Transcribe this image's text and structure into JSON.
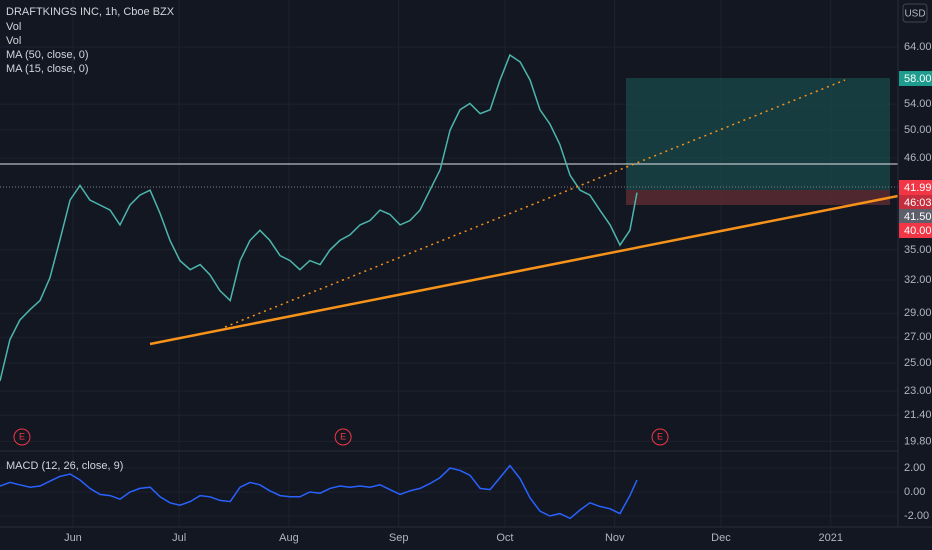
{
  "chart_data": [
    {
      "type": "line",
      "title": "DRAFTKINGS INC, 1h, Cboe BZX",
      "legend": [
        "Vol",
        "Vol",
        "MA (50, close, 0)",
        "MA (15, close, 0)"
      ],
      "currency": "USD",
      "color": "#4db6ac",
      "log_scale": true,
      "grid": true,
      "x": [
        -20.6,
        -17.8,
        -15.0,
        -12.1,
        -9.3,
        -6.5,
        -3.7,
        -0.8,
        2.0,
        4.8,
        7.6,
        10.5,
        13.3,
        16.1,
        18.9,
        21.8,
        24.6,
        27.4,
        30.2,
        33.1,
        35.9,
        38.7,
        41.5,
        44.4,
        47.2,
        50.0,
        52.8,
        55.6,
        58.5,
        61.3,
        64.1,
        66.9,
        69.8,
        72.6,
        75.4,
        78.2,
        81.1,
        83.9,
        86.7,
        89.5,
        92.4,
        95.2,
        98.0,
        100.8,
        103.7,
        106.5,
        109.3,
        112.1,
        115.0,
        117.8,
        120.6,
        123.4,
        126.3,
        129.1,
        131.9,
        134.7,
        137.5,
        140.4,
        143.2,
        146.0,
        148.8,
        151.7,
        154.5,
        157.3,
        159.3
      ],
      "values": [
        23.7,
        26.8,
        28.4,
        29.3,
        30.1,
        32.2,
        36.0,
        40.6,
        42.4,
        40.6,
        40.0,
        39.4,
        37.7,
        40.0,
        41.2,
        41.8,
        39.0,
        36.0,
        33.9,
        33.0,
        33.5,
        32.5,
        31.0,
        30.1,
        33.9,
        36.0,
        37.1,
        36.0,
        34.4,
        33.9,
        33.0,
        33.9,
        33.5,
        35.0,
        36.0,
        36.6,
        37.7,
        38.2,
        39.4,
        38.9,
        37.7,
        38.2,
        39.4,
        41.8,
        44.4,
        50.0,
        53.1,
        54.1,
        52.5,
        53.1,
        58.0,
        62.5,
        61.2,
        58.0,
        53.1,
        50.9,
        47.9,
        43.7,
        41.8,
        41.2,
        39.4,
        37.7,
        35.5,
        37.1,
        41.5
      ],
      "xlim": [
        -20.6,
        233
      ],
      "xticks": [
        {
          "value": 0,
          "label": "Jun"
        },
        {
          "value": 30,
          "label": "Jul"
        },
        {
          "value": 61,
          "label": "Aug"
        },
        {
          "value": 92,
          "label": "Sep"
        },
        {
          "value": 122,
          "label": "Oct"
        },
        {
          "value": 153,
          "label": "Nov"
        },
        {
          "value": 183,
          "label": "Dec"
        },
        {
          "value": 214,
          "label": "2021"
        }
      ],
      "ylim": [
        19.3,
        73.6
      ],
      "yticks": [
        {
          "value": 64,
          "label": "64.00"
        },
        {
          "value": 54,
          "label": "54.00"
        },
        {
          "value": 50,
          "label": "50.00"
        },
        {
          "value": 46,
          "label": "46.00"
        },
        {
          "value": 35,
          "label": "35.00"
        },
        {
          "value": 32,
          "label": "32.00"
        },
        {
          "value": 29,
          "label": "29.00"
        },
        {
          "value": 27,
          "label": "27.00"
        },
        {
          "value": 25,
          "label": "25.00"
        },
        {
          "value": 23,
          "label": "23.00"
        },
        {
          "value": 21.4,
          "label": "21.40"
        },
        {
          "value": 19.8,
          "label": "19.80"
        }
      ],
      "events": {
        "x": [
          -14.4,
          76.3,
          165.8
        ],
        "labels": [
          "E",
          "E",
          "E"
        ]
      },
      "price_labels": {
        "target": "58.00",
        "entry": "41.99",
        "countdown": "46:03",
        "last": "41.50",
        "stop": "40.00"
      }
    },
    {
      "type": "line",
      "title": "MACD (12, 26, close, 9)",
      "color": "#2962ff",
      "values": [
        0.5,
        0.8,
        0.6,
        0.4,
        0.5,
        0.9,
        1.3,
        1.5,
        1.0,
        0.3,
        -0.2,
        -0.3,
        -0.6,
        0.0,
        0.3,
        0.4,
        -0.4,
        -0.9,
        -1.1,
        -0.8,
        -0.3,
        -0.4,
        -0.7,
        -0.8,
        0.4,
        0.8,
        0.6,
        0.1,
        -0.3,
        -0.4,
        -0.4,
        0.0,
        -0.1,
        0.3,
        0.5,
        0.4,
        0.5,
        0.4,
        0.6,
        0.2,
        -0.2,
        0.1,
        0.3,
        0.7,
        1.2,
        2.0,
        1.8,
        1.4,
        0.3,
        0.2,
        1.2,
        2.2,
        1.1,
        -0.5,
        -1.6,
        -2.0,
        -1.8,
        -2.2,
        -1.5,
        -0.9,
        -1.2,
        -1.4,
        -1.8,
        -0.3,
        1.0
      ],
      "ylim": [
        -2.75,
        3.08
      ],
      "yticks": [
        {
          "value": 2,
          "label": "2.00"
        },
        {
          "value": 0,
          "label": "0.00"
        },
        {
          "value": -2,
          "label": "-2.00"
        }
      ]
    }
  ]
}
